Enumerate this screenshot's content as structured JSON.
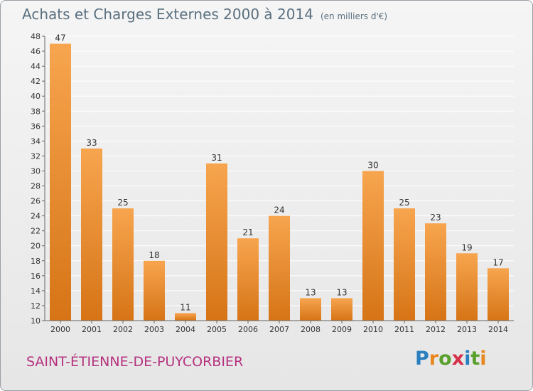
{
  "title": "Achats et Charges Externes 2000 à 2014",
  "unit": "(en milliers d'€)",
  "commune": "SAINT-ÉTIENNE-DE-PUYCORBIER",
  "brand": {
    "letters": [
      "P",
      "r",
      "o",
      "x",
      "i",
      "t",
      "i"
    ],
    "colors": [
      "#2a7fc0",
      "#e8861f",
      "#5aa02c",
      "#d6304a",
      "#2a7fc0",
      "#5aa02c",
      "#e8861f"
    ]
  },
  "colors": {
    "bar_light": "#f7a54f",
    "bar_dark": "#d67416",
    "grid": "#ffffff",
    "axis_text": "#333333"
  },
  "chart_data": {
    "type": "bar",
    "categories": [
      "2000",
      "2001",
      "2002",
      "2003",
      "2004",
      "2005",
      "2006",
      "2007",
      "2008",
      "2009",
      "2010",
      "2011",
      "2012",
      "2013",
      "2014"
    ],
    "values": [
      47,
      33,
      25,
      18,
      11,
      31,
      21,
      24,
      13,
      13,
      30,
      25,
      23,
      19,
      17
    ],
    "ylim": [
      10,
      48
    ],
    "yticks": [
      10,
      12,
      14,
      16,
      18,
      20,
      22,
      24,
      26,
      28,
      30,
      32,
      34,
      36,
      38,
      40,
      42,
      44,
      46,
      48
    ],
    "grid": true
  }
}
